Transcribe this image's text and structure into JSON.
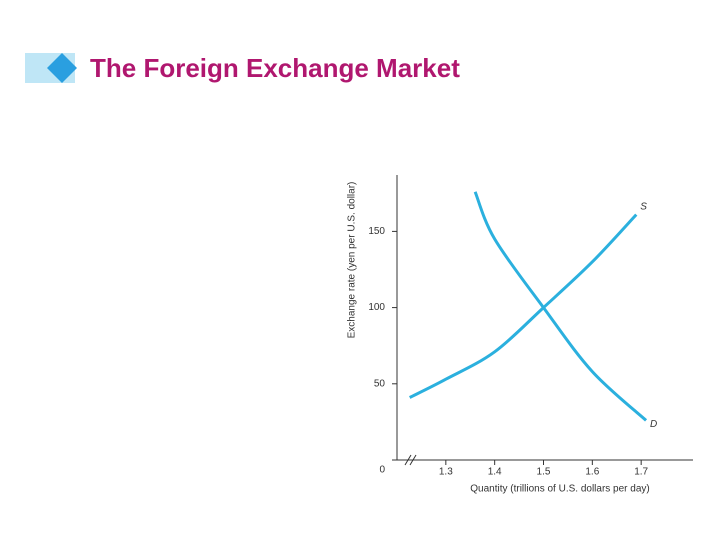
{
  "chart_data": {
    "type": "line",
    "title": "The Foreign Exchange Market",
    "xlabel": "Quantity (trillions of U.S. dollars per day)",
    "ylabel": "Exchange rate (yen per U.S. dollar)",
    "series": [
      {
        "name": "S",
        "color": "#2bb0de",
        "x": [
          1.226,
          1.3,
          1.4,
          1.5,
          1.6,
          1.69
        ],
        "values": [
          41,
          53,
          71,
          100,
          130,
          161
        ]
      },
      {
        "name": "D",
        "color": "#2bb0de",
        "x": [
          1.36,
          1.4,
          1.5,
          1.6,
          1.71
        ],
        "values": [
          176,
          145,
          100,
          58,
          26
        ]
      }
    ],
    "xlim": [
      1.2,
      1.8
    ],
    "xticks": [
      1.3,
      1.4,
      1.5,
      1.6,
      1.7
    ],
    "ylim": [
      0,
      187
    ],
    "yticks": [
      0,
      50,
      100,
      150
    ]
  }
}
